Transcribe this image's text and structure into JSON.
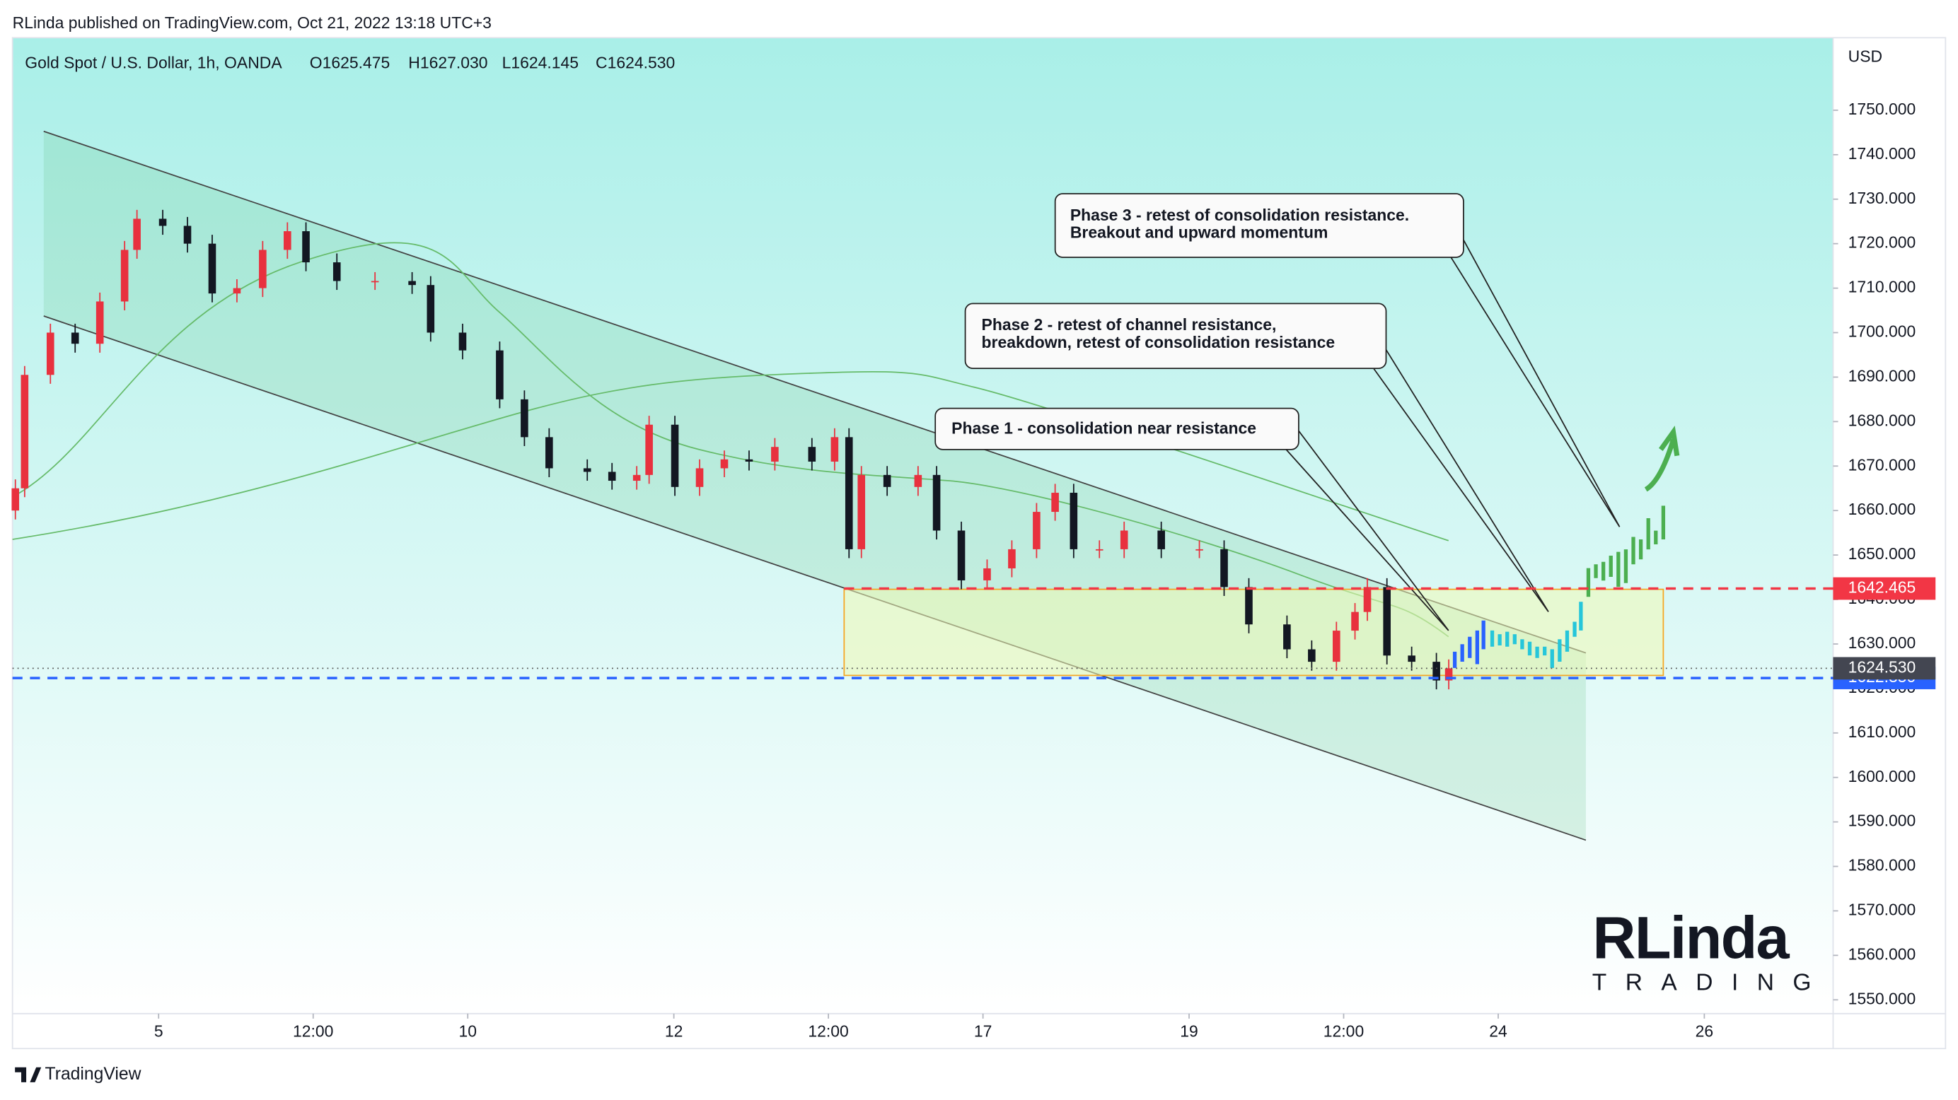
{
  "header": {
    "published": "RLinda published on TradingView.com, Oct 21, 2022 13:18 UTC+3",
    "footer": "TradingView"
  },
  "chart_data": {
    "type": "candlestick",
    "symbol": "Gold Spot / U.S. Dollar, 1h, OANDA",
    "ohlc_labels": [
      "O1625.475",
      "H1627.030",
      "L1624.145",
      "C1624.530"
    ],
    "currency": "USD",
    "x": [
      -1.39,
      -1.3,
      -1.05,
      -0.81,
      -0.57,
      -0.33,
      -0.21,
      0.04,
      0.28,
      0.52,
      0.76,
      1.01,
      1.25,
      1.43,
      1.73,
      2.1,
      2.46,
      2.64,
      2.95,
      3.31,
      3.55,
      3.79,
      4.16,
      4.4,
      4.64,
      4.76,
      5.01,
      5.25,
      5.49,
      5.73,
      5.98,
      6.34,
      6.56,
      6.7,
      6.82,
      7.07,
      7.37,
      7.55,
      7.79,
      8.04,
      8.28,
      8.52,
      8.7,
      8.88,
      9.13,
      9.37,
      9.73,
      10.1,
      10.34,
      10.58,
      10.95,
      11.19,
      11.43,
      11.61,
      11.73,
      11.92,
      12.16,
      12.4,
      12.52
    ],
    "open": [
      1660,
      1665,
      1690.5,
      1700,
      1697.5,
      1707,
      1718.6,
      1725.6,
      1724,
      1720,
      1708.8,
      1710,
      1718.6,
      1722.8,
      1715.8,
      1711.6,
      1711.6,
      1710.7,
      1700,
      1696,
      1685,
      1676.5,
      1669.5,
      1668.7,
      1666.7,
      1668,
      1679.3,
      1665.3,
      1669.5,
      1671.5,
      1671,
      1674.3,
      1671,
      1676.5,
      1651.3,
      1668,
      1665.3,
      1668,
      1655.5,
      1644.3,
      1647,
      1651.3,
      1659.7,
      1664,
      1651.3,
      1651.3,
      1655.5,
      1651.3,
      1651.3,
      1642.8,
      1634.4,
      1628.8,
      1626,
      1633,
      1637.2,
      1642.8,
      1627.4,
      1626,
      1621.8
    ],
    "high": [
      1667,
      1692.5,
      1702,
      1702,
      1709,
      1720.6,
      1727.6,
      1727.6,
      1726,
      1722,
      1712,
      1720.6,
      1724.8,
      1724.8,
      1717.8,
      1713.6,
      1713.6,
      1712.7,
      1702,
      1698,
      1687,
      1678.5,
      1671.5,
      1670.7,
      1670,
      1681.3,
      1681.3,
      1671.5,
      1673.5,
      1673.5,
      1676.3,
      1676.3,
      1678.5,
      1678.5,
      1670,
      1670,
      1670,
      1670,
      1657.5,
      1649,
      1653.3,
      1661.7,
      1666,
      1666,
      1653.3,
      1657.5,
      1657.5,
      1653.3,
      1653.3,
      1644.8,
      1636.4,
      1630.8,
      1635,
      1639.2,
      1644.8,
      1644.8,
      1629.4,
      1628,
      1626.53
    ],
    "low": [
      1658,
      1663,
      1688.5,
      1695.5,
      1695.5,
      1705,
      1716.6,
      1722,
      1718,
      1706.8,
      1706.8,
      1708,
      1716.6,
      1713.8,
      1709.6,
      1709.6,
      1708.7,
      1698,
      1694,
      1683,
      1674.5,
      1667.5,
      1666.7,
      1664.7,
      1664.7,
      1666,
      1663.3,
      1663.3,
      1667.5,
      1669,
      1669,
      1669,
      1669,
      1649.3,
      1649.3,
      1663.3,
      1663.3,
      1653.5,
      1642.3,
      1642.3,
      1645,
      1649.3,
      1657.7,
      1649.3,
      1649.3,
      1649.3,
      1649.3,
      1649.3,
      1640.8,
      1632.4,
      1626.8,
      1624,
      1624,
      1631,
      1635.2,
      1625.4,
      1624,
      1619.8,
      1619.8
    ],
    "close": [
      1665,
      1690.5,
      1700,
      1697.5,
      1707,
      1718.6,
      1725.6,
      1724,
      1720,
      1708.8,
      1710,
      1718.6,
      1722.8,
      1715.8,
      1711.6,
      1711.6,
      1710.7,
      1700,
      1696,
      1685,
      1676.5,
      1669.5,
      1668.7,
      1666.7,
      1668,
      1679.3,
      1665.3,
      1669.5,
      1671.5,
      1671,
      1674.3,
      1671,
      1676.5,
      1651.3,
      1668,
      1665.3,
      1668,
      1655.5,
      1644.3,
      1647,
      1651.3,
      1659.7,
      1664,
      1651.3,
      1651.3,
      1655.5,
      1651.3,
      1651.3,
      1642.8,
      1634.4,
      1628.8,
      1626,
      1633,
      1637.2,
      1642.8,
      1627.4,
      1626,
      1621.8,
      1624.53
    ],
    "up_color": "#e8313e",
    "down_color": "#131722",
    "xlim": [
      -1.418,
      16.25
    ],
    "xticks": [
      {
        "value": 0,
        "label": "5"
      },
      {
        "value": 1.5,
        "label": "12:00"
      },
      {
        "value": 3,
        "label": "10"
      },
      {
        "value": 5,
        "label": "12"
      },
      {
        "value": 6.5,
        "label": "12:00"
      },
      {
        "value": 8,
        "label": "17"
      },
      {
        "value": 10,
        "label": "19"
      },
      {
        "value": 11.5,
        "label": "12:00"
      },
      {
        "value": 13,
        "label": "24"
      },
      {
        "value": 15,
        "label": "26"
      }
    ],
    "ylim": [
      1546.9,
      1766.3
    ],
    "yticks": [
      {
        "value": 1550,
        "label": "1550.000"
      },
      {
        "value": 1560,
        "label": "1560.000"
      },
      {
        "value": 1570,
        "label": "1570.000"
      },
      {
        "value": 1580,
        "label": "1580.000"
      },
      {
        "value": 1590,
        "label": "1590.000"
      },
      {
        "value": 1600,
        "label": "1600.000"
      },
      {
        "value": 1610,
        "label": "1610.000"
      },
      {
        "value": 1620,
        "label": "1620.000"
      },
      {
        "value": 1630,
        "label": "1630.000"
      },
      {
        "value": 1640,
        "label": "1640.000"
      },
      {
        "value": 1650,
        "label": "1650.000"
      },
      {
        "value": 1660,
        "label": "1660.000"
      },
      {
        "value": 1670,
        "label": "1670.000"
      },
      {
        "value": 1680,
        "label": "1680.000"
      },
      {
        "value": 1690,
        "label": "1690.000"
      },
      {
        "value": 1700,
        "label": "1700.000"
      },
      {
        "value": 1710,
        "label": "1710.000"
      },
      {
        "value": 1720,
        "label": "1720.000"
      },
      {
        "value": 1730,
        "label": "1730.000"
      },
      {
        "value": 1740,
        "label": "1740.000"
      },
      {
        "value": 1750,
        "label": "1750.000"
      }
    ],
    "grid": false,
    "price_lines": [
      {
        "value": 1642.465,
        "label": "1642.465",
        "color": "#f23645"
      },
      {
        "value": 1622.35,
        "label": "1622.350",
        "color": "#2962ff"
      }
    ],
    "last_price": {
      "value": 1624.53,
      "label": "1624.530",
      "color": "#434651"
    },
    "annotations": [
      {
        "lines": [
          "Phase 1 - consolidation near resistance"
        ]
      },
      {
        "lines": [
          "Phase 2 - retest of channel resistance,",
          "breakdown, retest of consolidation resistance"
        ]
      },
      {
        "lines": [
          "Phase 3 - retest of consolidation resistance.",
          "Breakout and upward momentum"
        ]
      }
    ],
    "logo": {
      "brand": "RLinda",
      "tagline": "TRADING"
    }
  }
}
